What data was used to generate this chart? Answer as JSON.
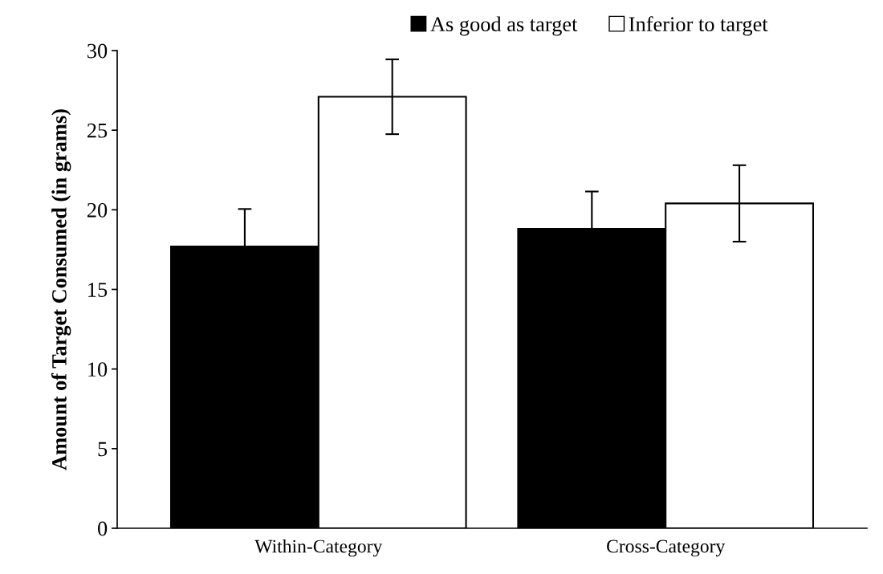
{
  "chart_data": {
    "type": "bar",
    "ylabel": "Amount of Target Consumed (in grams)",
    "categories": [
      "Within-Category",
      "Cross-Category"
    ],
    "series": [
      {
        "name": "As good as target",
        "color": "#000000",
        "values": [
          17.7,
          18.8
        ],
        "errors": [
          2.35,
          2.35
        ]
      },
      {
        "name": "Inferior to target",
        "color": "#ffffff",
        "values": [
          27.1,
          20.4
        ],
        "errors": [
          2.35,
          2.4
        ]
      }
    ],
    "ylim": [
      0,
      30
    ],
    "yticks": [
      0,
      5,
      10,
      15,
      20,
      25,
      30
    ],
    "grid": false,
    "legend": "top"
  }
}
